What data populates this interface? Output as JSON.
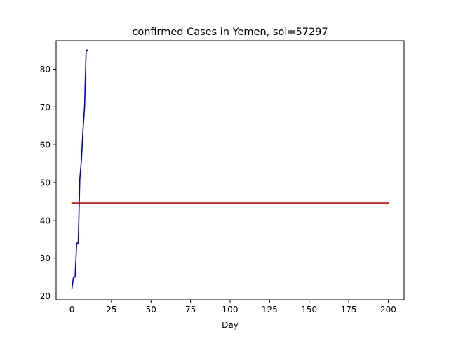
{
  "chart_data": {
    "type": "line",
    "title": "confirmed Cases in Yemen, sol=57297",
    "xlabel": "Day",
    "ylabel": "",
    "xlim": [
      -10,
      210
    ],
    "ylim": [
      19,
      87.5
    ],
    "xticks": [
      0,
      25,
      50,
      75,
      100,
      125,
      150,
      175,
      200
    ],
    "yticks": [
      20,
      30,
      40,
      50,
      60,
      70,
      80
    ],
    "grid": false,
    "series": [
      {
        "color": "#0000cc",
        "x": [
          0,
          1,
          2,
          3,
          4,
          5,
          6,
          7,
          8,
          9,
          10
        ],
        "y": [
          22,
          25,
          25,
          34,
          34,
          51,
          56,
          64,
          70,
          85,
          85
        ]
      },
      {
        "color": "#cc0000",
        "x": [
          0,
          200
        ],
        "y": [
          44.6,
          44.6
        ]
      }
    ]
  }
}
